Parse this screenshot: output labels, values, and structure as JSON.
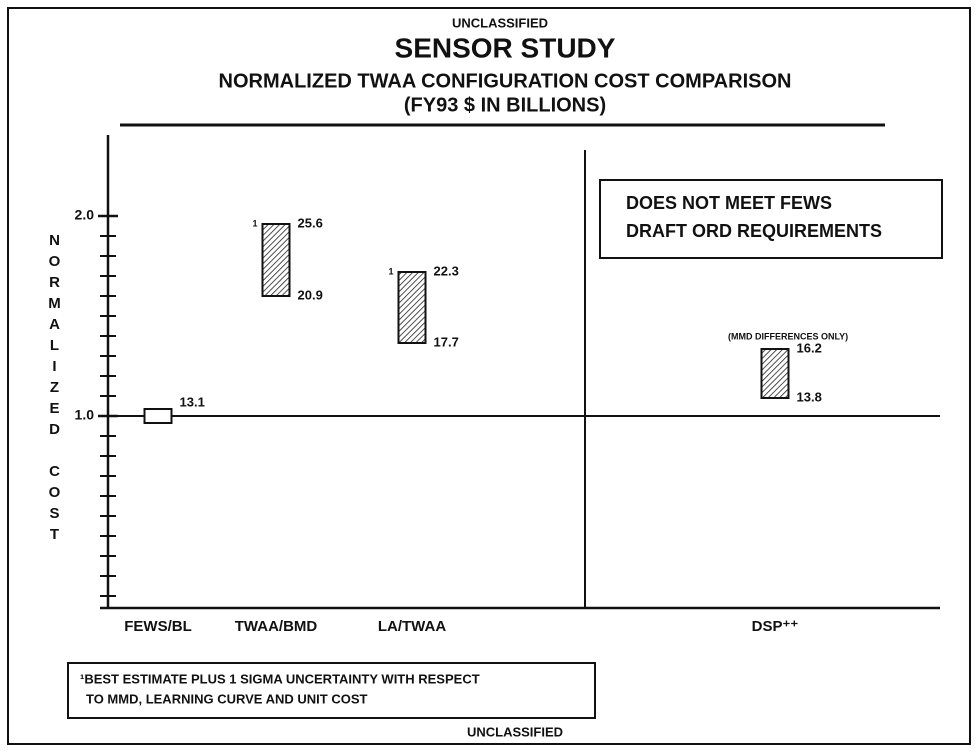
{
  "chart_data": {
    "type": "floating_bar",
    "header": "UNCLASSIFIED",
    "title": "SENSOR STUDY",
    "subtitle": [
      "NORMALIZED TWAA CONFIGURATION COST COMPARISON",
      "(FY93 $ IN BILLIONS)"
    ],
    "y_label": "NORMALIZED COST",
    "categories": [
      "FEWS/BL",
      "TWAA/BMD",
      "LA/TWAA",
      "DSP⁺⁺"
    ],
    "low": [
      0.965,
      1.6,
      1.365,
      1.09
    ],
    "high": [
      1.035,
      1.96,
      1.72,
      1.335
    ],
    "hatched": [
      false,
      true,
      true,
      true
    ],
    "cost_high": [
      null,
      25.6,
      22.3,
      16.2
    ],
    "cost_low": [
      13.1,
      20.9,
      17.7,
      13.8
    ],
    "footnote_marks": [
      null,
      "1",
      "1",
      null
    ],
    "ylim": [
      0.04,
      2.4
    ],
    "yticks": [
      {
        "value": 1,
        "label": "1.0"
      },
      {
        "value": 2,
        "label": "2.0"
      }
    ],
    "minor_yticks": [
      0.1,
      0.2,
      0.3,
      0.4,
      0.5,
      0.6,
      0.7,
      0.8,
      0.9,
      1.1,
      1.2,
      1.3,
      1.4,
      1.5,
      1.6,
      1.7,
      1.8,
      1.9
    ],
    "reference_line": 1,
    "region_note": [
      "DOES NOT MEET FEWS",
      "DRAFT ORD REQUIREMENTS"
    ],
    "dsp_note": "(MMD DIFFERENCES ONLY)",
    "footnote": [
      "¹BEST ESTIMATE PLUS 1 SIGMA UNCERTAINTY WITH RESPECT",
      "TO MMD, LEARNING CURVE AND UNIT COST"
    ],
    "footer": "UNCLASSIFIED"
  }
}
